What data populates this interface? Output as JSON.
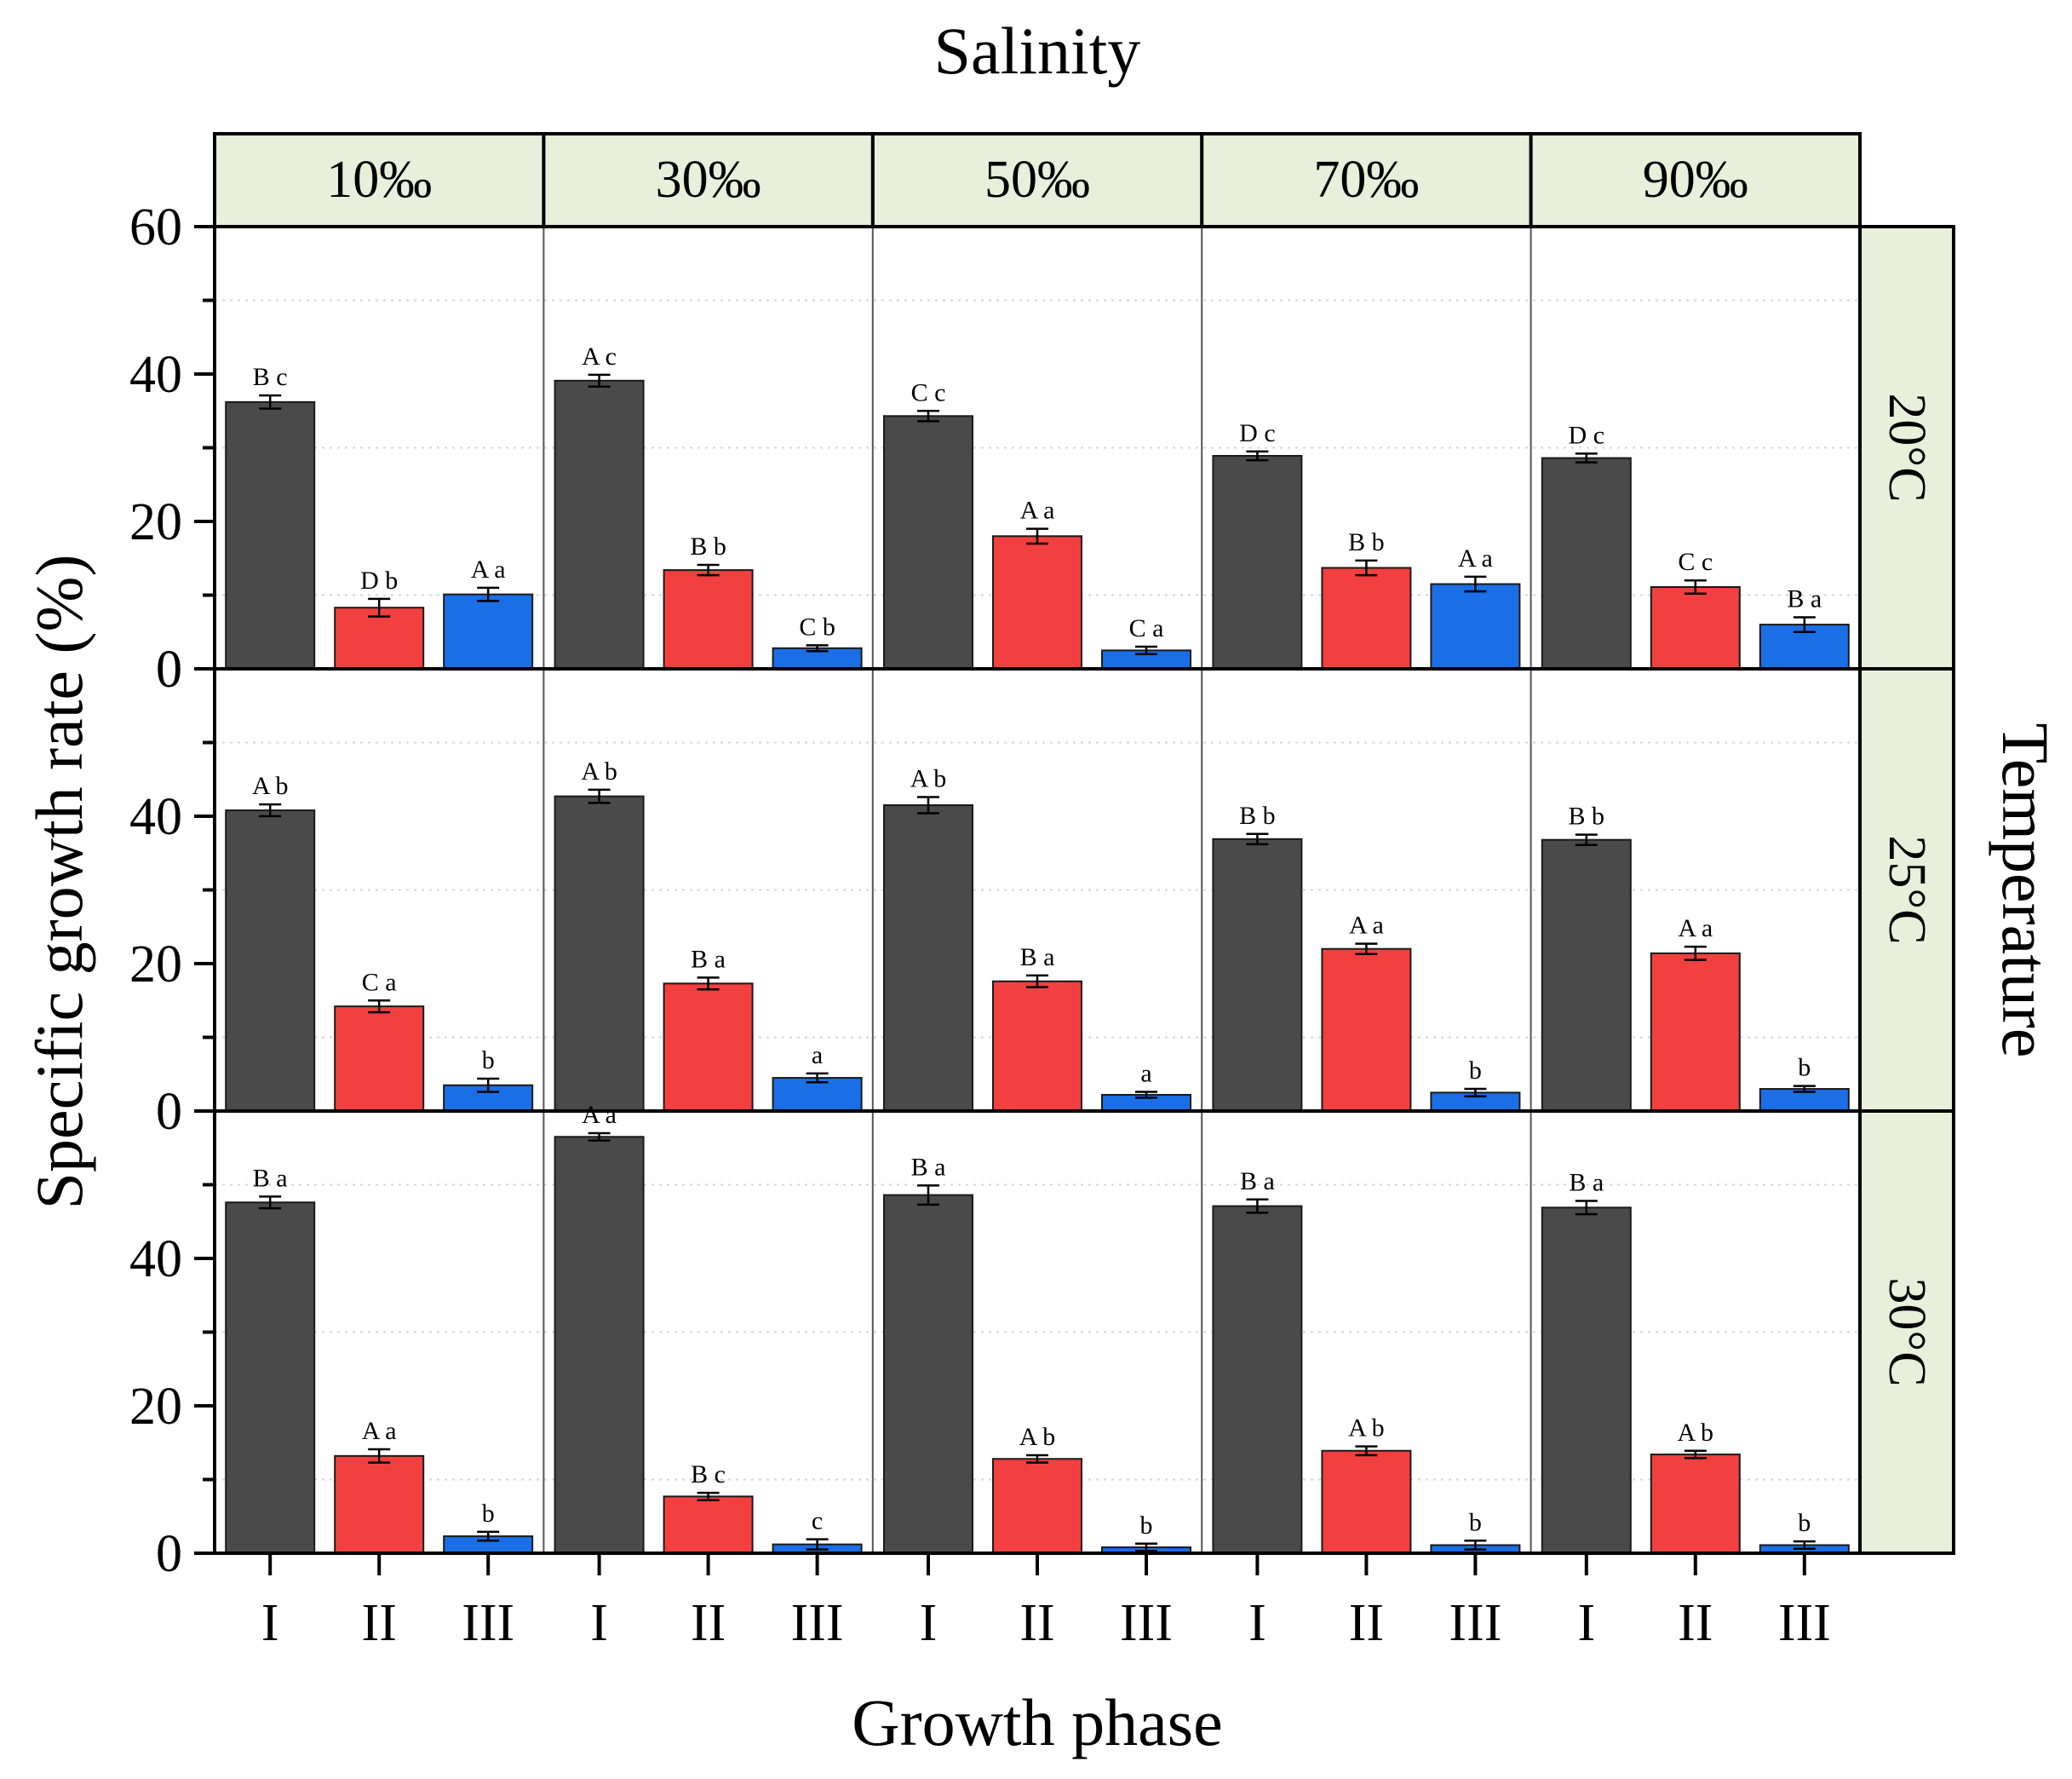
{
  "chart_data": {
    "type": "bar",
    "title": "Salinity",
    "xlabel": "Growth phase",
    "ylabel": "Specific growth rate (%)",
    "right_title": "Temperature",
    "ylim": [
      0,
      60
    ],
    "y_ticks": [
      "0",
      "20",
      "40",
      "60"
    ],
    "categories": [
      "I",
      "II",
      "III"
    ],
    "colors": [
      "#4a4a4a",
      "#f24040",
      "#1a6fe6"
    ],
    "strip_color": "#e8efda",
    "salinities": [
      "10‰",
      "30‰",
      "50‰",
      "70‰",
      "90‰"
    ],
    "temperatures": [
      "20°C",
      "25°C",
      "30°C"
    ],
    "panels": [
      [
        {
          "values": [
            36.2,
            8.3,
            10.1
          ],
          "errors": [
            0.9,
            1.2,
            0.9
          ],
          "labels": [
            "B c",
            "D b",
            "A a"
          ]
        },
        {
          "values": [
            39.1,
            13.4,
            2.8
          ],
          "errors": [
            0.8,
            0.7,
            0.4
          ],
          "labels": [
            "A c",
            "B b",
            "C b"
          ]
        },
        {
          "values": [
            34.3,
            18.0,
            2.5
          ],
          "errors": [
            0.7,
            1.0,
            0.5
          ],
          "labels": [
            "C c",
            "A a",
            "C a"
          ]
        },
        {
          "values": [
            28.9,
            13.7,
            11.5
          ],
          "errors": [
            0.6,
            1.0,
            1.0
          ],
          "labels": [
            "D c",
            "B b",
            "A a"
          ]
        },
        {
          "values": [
            28.6,
            11.1,
            6.0
          ],
          "errors": [
            0.6,
            0.9,
            1.0
          ],
          "labels": [
            "D c",
            "C c",
            "B a"
          ]
        }
      ],
      [
        {
          "values": [
            40.8,
            14.2,
            3.5
          ],
          "errors": [
            0.8,
            0.8,
            0.9
          ],
          "labels": [
            "A b",
            "C a",
            "b"
          ]
        },
        {
          "values": [
            42.7,
            17.3,
            4.5
          ],
          "errors": [
            0.9,
            0.8,
            0.6
          ],
          "labels": [
            "A b",
            "B a",
            "a"
          ]
        },
        {
          "values": [
            41.5,
            17.6,
            2.2
          ],
          "errors": [
            1.1,
            0.8,
            0.4
          ],
          "labels": [
            "A b",
            "B a",
            "a"
          ]
        },
        {
          "values": [
            36.9,
            22.0,
            2.5
          ],
          "errors": [
            0.7,
            0.7,
            0.5
          ],
          "labels": [
            "B b",
            "A a",
            "b"
          ]
        },
        {
          "values": [
            36.8,
            21.4,
            3.0
          ],
          "errors": [
            0.7,
            0.9,
            0.4
          ],
          "labels": [
            "B b",
            "A a",
            "b"
          ]
        }
      ],
      [
        {
          "values": [
            47.6,
            13.2,
            2.3
          ],
          "errors": [
            0.8,
            0.9,
            0.6
          ],
          "labels": [
            "B a",
            "A a",
            "b"
          ]
        },
        {
          "values": [
            56.5,
            7.7,
            1.2
          ],
          "errors": [
            0.5,
            0.5,
            0.7
          ],
          "labels": [
            "A a",
            "B c",
            "c"
          ]
        },
        {
          "values": [
            48.6,
            12.8,
            0.8
          ],
          "errors": [
            1.3,
            0.5,
            0.5
          ],
          "labels": [
            "B a",
            "A b",
            "b"
          ]
        },
        {
          "values": [
            47.1,
            13.9,
            1.1
          ],
          "errors": [
            0.9,
            0.6,
            0.6
          ],
          "labels": [
            "B a",
            "A b",
            "b"
          ]
        },
        {
          "values": [
            46.9,
            13.4,
            1.1
          ],
          "errors": [
            0.9,
            0.5,
            0.5
          ],
          "labels": [
            "B a",
            "A b",
            "b"
          ]
        }
      ]
    ]
  }
}
